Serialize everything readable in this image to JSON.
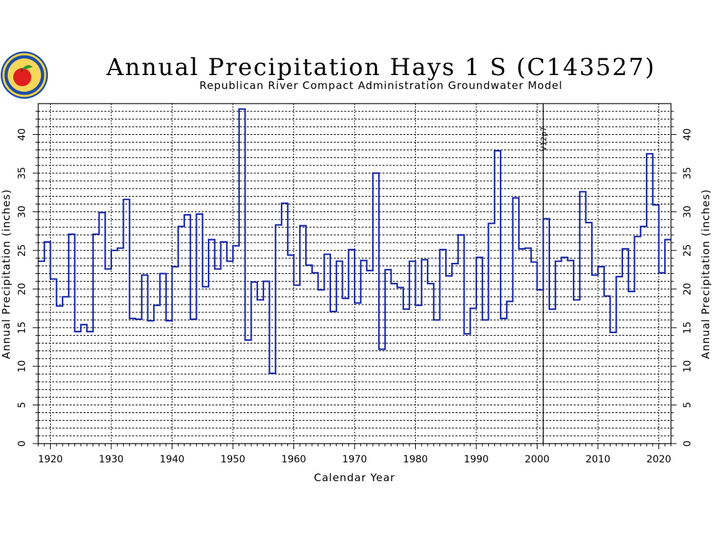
{
  "chart_data": {
    "type": "line",
    "step": true,
    "title": "Annual Precipitation Hays 1 S (C143527)",
    "subtitle": "Republican River Compact Administration Groundwater Model",
    "xlabel": "Calendar Year",
    "ylabel": "Annual Precipitation (inches)",
    "xlim": [
      1918,
      2022
    ],
    "ylim": [
      0,
      44
    ],
    "x_ticks": [
      1920,
      1930,
      1940,
      1950,
      1960,
      1970,
      1980,
      1990,
      2000,
      2010,
      2020
    ],
    "y_ticks": [
      0,
      5,
      10,
      15,
      20,
      25,
      30,
      35,
      40
    ],
    "grid": true,
    "line_color": "#1a2aa8",
    "annotations": [
      {
        "label": "V12p7",
        "x": 2001
      }
    ],
    "series": [
      {
        "x": [
          1918,
          1919,
          1920,
          1921,
          1922,
          1923,
          1924,
          1925,
          1926,
          1927,
          1928,
          1929,
          1930,
          1931,
          1932,
          1933,
          1934,
          1935,
          1936,
          1937,
          1938,
          1939,
          1940,
          1941,
          1942,
          1943,
          1944,
          1945,
          1946,
          1947,
          1948,
          1949,
          1950,
          1951,
          1952,
          1953,
          1954,
          1955,
          1956,
          1957,
          1958,
          1959,
          1960,
          1961,
          1962,
          1963,
          1964,
          1965,
          1966,
          1967,
          1968,
          1969,
          1970,
          1971,
          1972,
          1973,
          1974,
          1975,
          1976,
          1977,
          1978,
          1979,
          1980,
          1981,
          1982,
          1983,
          1984,
          1985,
          1986,
          1987,
          1988,
          1989,
          1990,
          1991,
          1992,
          1993,
          1994,
          1995,
          1996,
          1997,
          1998,
          1999,
          2000,
          2001,
          2002,
          2003,
          2004,
          2005,
          2006,
          2007,
          2008,
          2009,
          2010,
          2011,
          2012,
          2013,
          2014,
          2015,
          2016,
          2017,
          2018,
          2019,
          2020,
          2021
        ],
        "values": [
          23.6,
          26.1,
          21.3,
          17.8,
          19.0,
          27.1,
          14.5,
          15.4,
          14.5,
          27.1,
          29.9,
          22.6,
          25.0,
          25.3,
          31.6,
          16.2,
          16.1,
          21.8,
          15.9,
          17.9,
          22.0,
          15.9,
          22.9,
          28.1,
          29.6,
          16.1,
          29.7,
          20.3,
          26.4,
          22.6,
          26.1,
          23.6,
          25.6,
          43.3,
          13.4,
          20.9,
          18.6,
          21.0,
          9.1,
          28.3,
          31.1,
          24.4,
          20.5,
          28.2,
          23.1,
          22.1,
          19.9,
          24.5,
          17.1,
          23.6,
          18.8,
          25.1,
          18.2,
          23.7,
          22.4,
          35.0,
          12.2,
          22.5,
          20.7,
          20.2,
          17.4,
          23.6,
          17.9,
          23.8,
          20.7,
          16.0,
          25.1,
          21.7,
          23.3,
          27.0,
          14.2,
          17.5,
          24.1,
          16.0,
          28.5,
          37.9,
          16.2,
          18.4,
          31.8,
          25.2,
          25.3,
          23.5,
          19.9,
          29.1,
          17.4,
          23.6,
          24.1,
          23.7,
          18.6,
          32.6,
          28.6,
          21.8,
          22.9,
          19.1,
          14.4,
          21.6,
          25.2,
          19.7,
          26.8,
          28.1,
          37.5,
          30.9,
          22.1,
          26.4
        ]
      }
    ]
  }
}
